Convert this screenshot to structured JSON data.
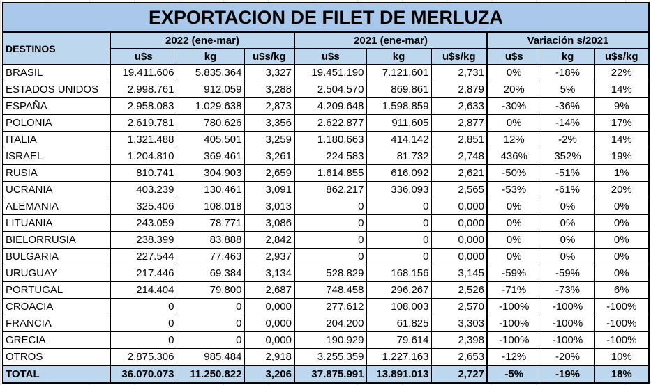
{
  "title": "EXPORTACION DE FILET DE MERLUZA",
  "headers": {
    "destinos": "DESTINOS",
    "group_2022": "2022 (ene-mar)",
    "group_2021": "2021 (ene-mar)",
    "group_var": "Variación s/2021",
    "sub": [
      "u$s",
      "kg",
      "u$s/kg",
      "u$s",
      "kg",
      "u$s/kg",
      "u$s",
      "kg",
      "u$s/kg"
    ]
  },
  "rows": [
    [
      "BRASIL",
      "19.411.606",
      "5.835.364",
      "3,327",
      "19.451.190",
      "7.121.601",
      "2,731",
      "0%",
      "-18%",
      "22%"
    ],
    [
      "ESTADOS UNIDOS",
      "2.998.761",
      "912.059",
      "3,288",
      "2.504.570",
      "869.861",
      "2,879",
      "20%",
      "5%",
      "14%"
    ],
    [
      "ESPAÑA",
      "2.958.083",
      "1.029.638",
      "2,873",
      "4.209.648",
      "1.598.859",
      "2,633",
      "-30%",
      "-36%",
      "9%"
    ],
    [
      "POLONIA",
      "2.619.781",
      "780.626",
      "3,356",
      "2.622.877",
      "911.605",
      "2,877",
      "0%",
      "-14%",
      "17%"
    ],
    [
      "ITALIA",
      "1.321.488",
      "405.501",
      "3,259",
      "1.180.663",
      "414.142",
      "2,851",
      "12%",
      "-2%",
      "14%"
    ],
    [
      "ISRAEL",
      "1.204.810",
      "369.461",
      "3,261",
      "224.583",
      "81.732",
      "2,748",
      "436%",
      "352%",
      "19%"
    ],
    [
      "RUSIA",
      "810.741",
      "304.903",
      "2,659",
      "1.614.855",
      "616.092",
      "2,621",
      "-50%",
      "-51%",
      "1%"
    ],
    [
      "UCRANIA",
      "403.239",
      "130.461",
      "3,091",
      "862.217",
      "336.093",
      "2,565",
      "-53%",
      "-61%",
      "20%"
    ],
    [
      "ALEMANIA",
      "325.406",
      "108.018",
      "3,013",
      "0",
      "0",
      "0,000",
      "0%",
      "0%",
      "0%"
    ],
    [
      "LITUANIA",
      "243.059",
      "78.771",
      "3,086",
      "0",
      "0",
      "0,000",
      "0%",
      "0%",
      "0%"
    ],
    [
      "BIELORRUSIA",
      "238.399",
      "83.888",
      "2,842",
      "0",
      "0",
      "0,000",
      "0%",
      "0%",
      "0%"
    ],
    [
      "BULGARIA",
      "227.544",
      "77.463",
      "2,937",
      "0",
      "0",
      "0,000",
      "0%",
      "0%",
      "0%"
    ],
    [
      "URUGUAY",
      "217.446",
      "69.384",
      "3,134",
      "528.829",
      "168.156",
      "3,145",
      "-59%",
      "-59%",
      "0%"
    ],
    [
      "PORTUGAL",
      "214.404",
      "79.800",
      "2,687",
      "748.458",
      "296.267",
      "2,526",
      "-71%",
      "-73%",
      "6%"
    ],
    [
      "CROACIA",
      "0",
      "0",
      "0,000",
      "277.612",
      "108.003",
      "2,570",
      "-100%",
      "-100%",
      "-100%"
    ],
    [
      "FRANCIA",
      "0",
      "0",
      "0,000",
      "204.200",
      "61.825",
      "3,303",
      "-100%",
      "-100%",
      "-100%"
    ],
    [
      "GRECIA",
      "0",
      "0",
      "0,000",
      "190.929",
      "79.614",
      "2,398",
      "-100%",
      "-100%",
      "-100%"
    ],
    [
      "OTROS",
      "2.875.306",
      "985.484",
      "2,918",
      "3.255.359",
      "1.227.163",
      "2,653",
      "-12%",
      "-20%",
      "10%"
    ]
  ],
  "total": [
    "TOTAL",
    "36.070.073",
    "11.250.822",
    "3,206",
    "37.875.991",
    "13.891.013",
    "2,727",
    "-5%",
    "-19%",
    "18%"
  ]
}
